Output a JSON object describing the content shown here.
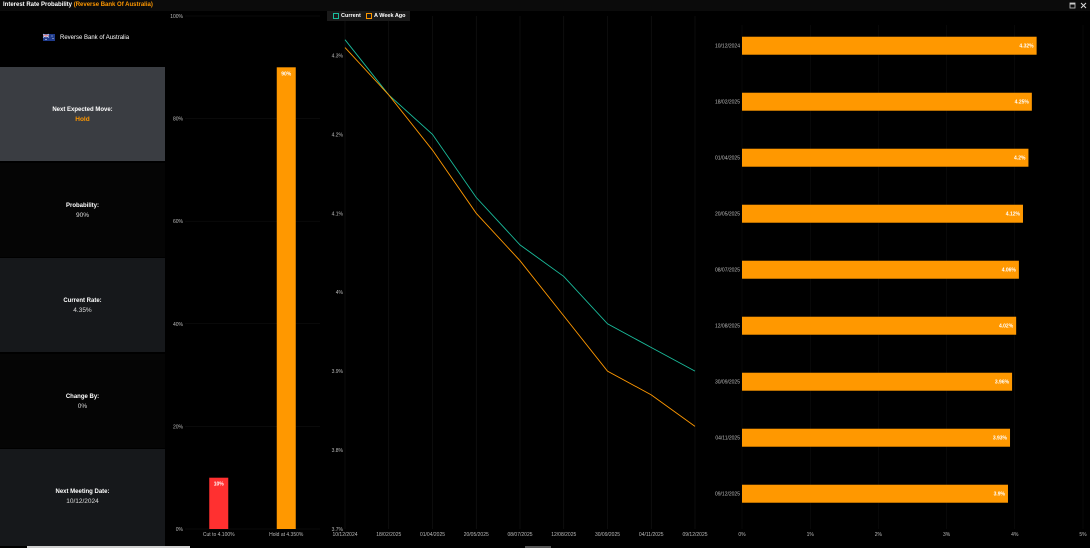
{
  "window": {
    "title": "Interest Rate Probability",
    "subtitle": "(Reverse Bank Of Australia)",
    "icons": [
      "restore-icon",
      "close-icon"
    ]
  },
  "bank": {
    "name": "Reverse Bank of Australia",
    "flag_icon": "australia-flag-icon"
  },
  "cards": [
    {
      "label": "Next Expected Move:",
      "value": "Hold"
    },
    {
      "label": "Probability:",
      "value": "90%"
    },
    {
      "label": "Current Rate:",
      "value": "4.35%"
    },
    {
      "label": "Change By:",
      "value": "0%"
    },
    {
      "label": "Next Meeting Date:",
      "value": "10/12/2024"
    }
  ],
  "colors": {
    "orange": "#ff9800",
    "red": "#ff3030",
    "teal": "#1abc9c",
    "grid": "#222222"
  },
  "chart_data": [
    {
      "type": "bar",
      "categories": [
        "Cut to 4.100%",
        "Hold at 4.350%"
      ],
      "values": [
        10,
        90
      ],
      "data_labels": [
        "10%",
        "90%"
      ],
      "colors": [
        "#ff3030",
        "#ff9800"
      ],
      "ylim": [
        0,
        100
      ],
      "yticks": [
        "0%",
        "20%",
        "40%",
        "60%",
        "80%",
        "100%"
      ]
    },
    {
      "type": "line",
      "legend": [
        "Current",
        "A Week Ago"
      ],
      "legend_position": "top",
      "categories": [
        "10/12/2024",
        "18/02/2025",
        "01/04/2025",
        "20/05/2025",
        "08/07/2025",
        "12/08/2025",
        "30/09/2025",
        "04/11/2025",
        "09/12/2025"
      ],
      "series": [
        {
          "name": "Current",
          "color": "#1abc9c",
          "values": [
            4.32,
            4.25,
            4.2,
            4.12,
            4.06,
            4.02,
            3.96,
            3.93,
            3.9
          ]
        },
        {
          "name": "A Week Ago",
          "color": "#ff9800",
          "values": [
            4.31,
            4.25,
            4.18,
            4.1,
            4.04,
            3.97,
            3.9,
            3.87,
            3.83
          ]
        }
      ],
      "ylim": [
        3.7,
        4.35
      ],
      "yticks": [
        "3.7%",
        "3.8%",
        "3.9%",
        "4%",
        "4.1%",
        "4.2%",
        "4.3%"
      ]
    },
    {
      "type": "bar",
      "orientation": "horizontal",
      "categories": [
        "10/12/2024",
        "18/02/2025",
        "01/04/2025",
        "20/05/2025",
        "08/07/2025",
        "12/08/2025",
        "30/09/2025",
        "04/11/2025",
        "09/12/2025"
      ],
      "values": [
        4.32,
        4.25,
        4.2,
        4.12,
        4.06,
        4.02,
        3.96,
        3.93,
        3.9
      ],
      "data_labels": [
        "4.32%",
        "4.25%",
        "4.2%",
        "4.12%",
        "4.06%",
        "4.02%",
        "3.96%",
        "3.93%",
        "3.9%"
      ],
      "xlim": [
        0,
        5
      ],
      "xticks": [
        "0%",
        "1%",
        "2%",
        "3%",
        "4%",
        "5%"
      ]
    }
  ]
}
